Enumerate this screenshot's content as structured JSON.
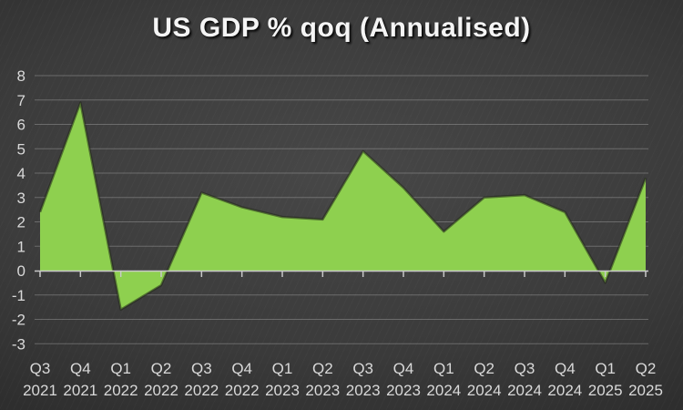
{
  "chart_data": {
    "type": "area",
    "title": "US GDP % qoq (Annualised)",
    "categories": [
      "Q3 2021",
      "Q4 2021",
      "Q1 2022",
      "Q2 2022",
      "Q3 2022",
      "Q4 2022",
      "Q1 2023",
      "Q2 2023",
      "Q3 2023",
      "Q4 2023",
      "Q1 2024",
      "Q2 2024",
      "Q3 2024",
      "Q4 2024",
      "Q1 2025",
      "Q2 2025"
    ],
    "values": [
      2.4,
      6.9,
      -1.6,
      -0.6,
      3.2,
      2.6,
      2.2,
      2.1,
      4.9,
      3.4,
      1.6,
      3.0,
      3.1,
      2.4,
      -0.5,
      3.8
    ],
    "yticks": [
      8,
      7,
      6,
      5,
      4,
      3,
      2,
      1,
      0,
      -1,
      -2,
      -3
    ],
    "ylim": [
      -3,
      8
    ],
    "xlabel": "",
    "ylabel": "",
    "grid": true,
    "legend": "none",
    "baseline": 0
  },
  "colors": {
    "series_fill": "#8ED04F",
    "series_edge": "rgba(32,38,24,0.55)",
    "gridline": "rgba(165,165,165,0.45)",
    "axis_line": "#c9c9c9",
    "tick_label": "#d9d9d9",
    "title_text": "#f5f5f5",
    "background_center": "#474747",
    "background_edge": "#262626"
  }
}
